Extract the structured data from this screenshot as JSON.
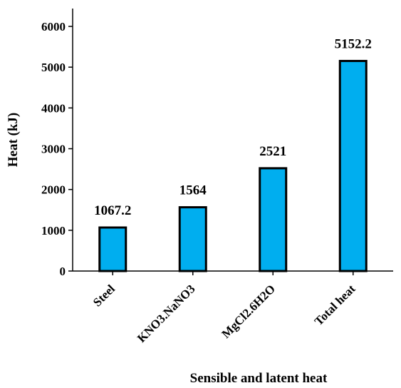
{
  "chart_data": {
    "type": "bar",
    "categories": [
      "Steel",
      "KNO3.NaNO3",
      "MgCl2.6H2O",
      "Total heat"
    ],
    "values": [
      1067.2,
      1564,
      2521,
      5152.2
    ],
    "data_labels": [
      "1067.2",
      "1564",
      "2521",
      "5152.2"
    ],
    "xlabel": "Sensible and latent heat",
    "ylabel": "Heat (kJ)",
    "ylim": [
      0,
      6000
    ],
    "yticks": [
      0,
      1000,
      2000,
      3000,
      4000,
      5000,
      6000
    ],
    "grid": false,
    "legend": "none",
    "bar_color": "#00AEEF",
    "bar_edge_color": "#000000"
  }
}
